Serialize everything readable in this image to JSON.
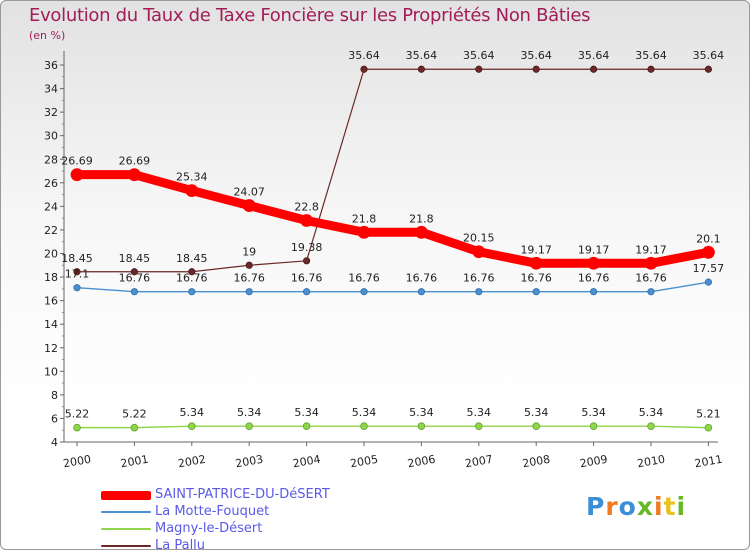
{
  "chart_data": {
    "type": "line",
    "title": "Evolution du Taux de Taxe Foncière sur les Propriétés Non Bâties",
    "ylabel": "(en %)",
    "xlabel": "",
    "ylim": [
      4,
      36
    ],
    "yticks": [
      4,
      6,
      8,
      10,
      12,
      14,
      16,
      18,
      20,
      22,
      24,
      26,
      28,
      30,
      32,
      34,
      36
    ],
    "categories": [
      "2000",
      "2001",
      "2002",
      "2003",
      "2004",
      "2005",
      "2006",
      "2007",
      "2008",
      "2009",
      "2010",
      "2011"
    ],
    "grid": false,
    "legend_position": "bottom-left",
    "series": [
      {
        "name": "SAINT-PATRICE-DU-DéSERT",
        "color": "#ff0000",
        "values": [
          26.69,
          26.69,
          25.34,
          24.07,
          22.8,
          21.8,
          21.8,
          20.15,
          19.17,
          19.17,
          19.17,
          20.1
        ],
        "labels": [
          "26.69",
          "26.69",
          "25.34",
          "24.07",
          "22.8",
          "21.8",
          "21.8",
          "20.15",
          "19.17",
          "19.17",
          "19.17",
          "20.1"
        ]
      },
      {
        "name": "La Motte-Fouquet",
        "color": "#4a8fd0",
        "values": [
          17.1,
          16.76,
          16.76,
          16.76,
          16.76,
          16.76,
          16.76,
          16.76,
          16.76,
          16.76,
          16.76,
          17.57
        ],
        "labels": [
          "17.1",
          "16.76",
          "16.76",
          "16.76",
          "16.76",
          "16.76",
          "16.76",
          "16.76",
          "16.76",
          "16.76",
          "16.76",
          "17.57"
        ]
      },
      {
        "name": "Magny-le-Désert",
        "color": "#8ed648",
        "values": [
          5.22,
          5.22,
          5.34,
          5.34,
          5.34,
          5.34,
          5.34,
          5.34,
          5.34,
          5.34,
          5.34,
          5.21
        ],
        "labels": [
          "5.22",
          "5.22",
          "5.34",
          "5.34",
          "5.34",
          "5.34",
          "5.34",
          "5.34",
          "5.34",
          "5.34",
          "5.34",
          "5.21"
        ]
      },
      {
        "name": "La Pallu",
        "color": "#6b2828",
        "values": [
          18.45,
          18.45,
          18.45,
          19,
          19.38,
          35.64,
          35.64,
          35.64,
          35.64,
          35.64,
          35.64,
          35.64
        ],
        "labels": [
          "18.45",
          "18.45",
          "18.45",
          "19",
          "19.38",
          "35.64",
          "35.64",
          "35.64",
          "35.64",
          "35.64",
          "35.64",
          "35.64"
        ]
      }
    ]
  },
  "branding": {
    "logo_text": "Proxiti",
    "logo_colors": [
      "#3b8fd6",
      "#f07a1e",
      "#3b8fd6",
      "#66b828",
      "#f07a1e",
      "#e8c21e",
      "#66b828"
    ]
  }
}
